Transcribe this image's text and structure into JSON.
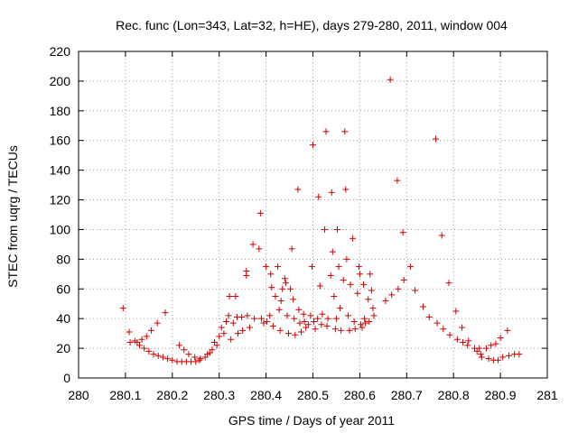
{
  "chart_data": {
    "type": "scatter",
    "title": "Rec. func (Lon=343, Lat=32, h=HE), days 279-280, 2011, window 004",
    "xlabel": "GPS time / Days of year 2011",
    "ylabel": "STEC from uqrg / TECUs",
    "xlim": [
      280,
      281
    ],
    "ylim": [
      0,
      220
    ],
    "xticks": [
      "280",
      "280.1",
      "280.2",
      "280.3",
      "280.4",
      "280.5",
      "280.6",
      "280.7",
      "280.8",
      "280.9",
      "281"
    ],
    "yticks": [
      "0",
      "20",
      "40",
      "60",
      "80",
      "100",
      "120",
      "140",
      "160",
      "180",
      "200",
      "220"
    ],
    "grid": true,
    "marker": "plus",
    "color": "#cc0000",
    "points": [
      [
        280.095,
        47
      ],
      [
        280.108,
        31
      ],
      [
        280.11,
        24
      ],
      [
        280.12,
        25
      ],
      [
        280.125,
        24
      ],
      [
        280.13,
        22
      ],
      [
        280.135,
        26
      ],
      [
        280.14,
        20
      ],
      [
        280.145,
        28
      ],
      [
        280.15,
        18
      ],
      [
        280.155,
        32
      ],
      [
        280.16,
        16
      ],
      [
        280.168,
        37
      ],
      [
        280.17,
        15
      ],
      [
        280.18,
        14
      ],
      [
        280.185,
        44
      ],
      [
        280.19,
        13
      ],
      [
        280.2,
        12
      ],
      [
        280.21,
        11
      ],
      [
        280.215,
        22
      ],
      [
        280.22,
        11
      ],
      [
        280.225,
        19
      ],
      [
        280.23,
        11
      ],
      [
        280.235,
        16
      ],
      [
        280.24,
        11
      ],
      [
        280.248,
        14
      ],
      [
        280.25,
        11
      ],
      [
        280.258,
        12
      ],
      [
        280.26,
        13
      ],
      [
        280.27,
        14
      ],
      [
        280.275,
        16
      ],
      [
        280.28,
        17
      ],
      [
        280.285,
        19
      ],
      [
        280.29,
        24
      ],
      [
        280.295,
        22
      ],
      [
        280.3,
        28
      ],
      [
        280.305,
        34
      ],
      [
        280.31,
        30
      ],
      [
        280.315,
        38
      ],
      [
        280.32,
        42
      ],
      [
        280.322,
        55
      ],
      [
        280.325,
        26
      ],
      [
        280.33,
        37
      ],
      [
        280.335,
        55
      ],
      [
        280.338,
        41
      ],
      [
        280.34,
        30
      ],
      [
        280.348,
        41
      ],
      [
        280.35,
        32
      ],
      [
        280.358,
        72
      ],
      [
        280.358,
        69
      ],
      [
        280.36,
        42
      ],
      [
        280.365,
        34
      ],
      [
        280.372,
        90
      ],
      [
        280.375,
        40
      ],
      [
        280.385,
        87
      ],
      [
        280.388,
        111
      ],
      [
        280.39,
        40
      ],
      [
        280.395,
        37
      ],
      [
        280.4,
        75
      ],
      [
        280.402,
        38
      ],
      [
        280.408,
        42
      ],
      [
        280.41,
        70
      ],
      [
        280.412,
        61
      ],
      [
        280.415,
        35
      ],
      [
        280.42,
        55
      ],
      [
        280.425,
        75
      ],
      [
        280.428,
        46
      ],
      [
        280.43,
        32
      ],
      [
        280.432,
        52
      ],
      [
        280.435,
        60
      ],
      [
        280.44,
        67
      ],
      [
        280.442,
        64
      ],
      [
        280.445,
        42
      ],
      [
        280.448,
        30
      ],
      [
        280.452,
        60
      ],
      [
        280.455,
        87
      ],
      [
        280.458,
        53
      ],
      [
        280.46,
        40
      ],
      [
        280.462,
        29
      ],
      [
        280.468,
        127
      ],
      [
        280.47,
        46
      ],
      [
        280.472,
        37
      ],
      [
        280.475,
        31
      ],
      [
        280.48,
        43
      ],
      [
        280.482,
        38
      ],
      [
        280.485,
        34
      ],
      [
        280.49,
        36
      ],
      [
        280.495,
        42
      ],
      [
        280.498,
        75
      ],
      [
        280.5,
        157
      ],
      [
        280.502,
        38
      ],
      [
        280.505,
        33
      ],
      [
        280.51,
        40
      ],
      [
        280.512,
        122
      ],
      [
        280.515,
        62
      ],
      [
        280.518,
        36
      ],
      [
        280.52,
        43
      ],
      [
        280.525,
        100
      ],
      [
        280.528,
        166
      ],
      [
        280.53,
        35
      ],
      [
        280.532,
        40
      ],
      [
        280.538,
        69
      ],
      [
        280.54,
        125
      ],
      [
        280.542,
        85
      ],
      [
        280.545,
        55
      ],
      [
        280.548,
        33
      ],
      [
        280.55,
        40
      ],
      [
        280.552,
        100
      ],
      [
        280.555,
        75
      ],
      [
        280.558,
        47
      ],
      [
        280.56,
        32
      ],
      [
        280.565,
        66
      ],
      [
        280.568,
        166
      ],
      [
        280.57,
        127
      ],
      [
        280.572,
        80
      ],
      [
        280.575,
        42
      ],
      [
        280.578,
        32
      ],
      [
        280.58,
        63
      ],
      [
        280.585,
        94
      ],
      [
        280.588,
        38
      ],
      [
        280.59,
        33
      ],
      [
        280.595,
        57
      ],
      [
        280.598,
        75
      ],
      [
        280.6,
        70
      ],
      [
        280.602,
        36
      ],
      [
        280.605,
        34
      ],
      [
        280.608,
        63
      ],
      [
        280.61,
        40
      ],
      [
        280.612,
        37
      ],
      [
        280.618,
        53
      ],
      [
        280.62,
        38
      ],
      [
        280.622,
        70
      ],
      [
        280.625,
        59
      ],
      [
        280.628,
        47
      ],
      [
        280.63,
        42
      ],
      [
        280.655,
        52
      ],
      [
        280.665,
        201
      ],
      [
        280.668,
        56
      ],
      [
        280.68,
        133
      ],
      [
        280.682,
        60
      ],
      [
        280.692,
        98
      ],
      [
        280.694,
        66
      ],
      [
        280.708,
        75
      ],
      [
        280.718,
        59
      ],
      [
        280.735,
        48
      ],
      [
        280.748,
        41
      ],
      [
        280.762,
        161
      ],
      [
        280.765,
        37
      ],
      [
        280.775,
        96
      ],
      [
        280.778,
        33
      ],
      [
        280.79,
        64
      ],
      [
        280.792,
        29
      ],
      [
        280.805,
        45
      ],
      [
        280.808,
        26
      ],
      [
        280.818,
        34
      ],
      [
        280.82,
        24
      ],
      [
        280.83,
        22
      ],
      [
        280.832,
        25
      ],
      [
        280.845,
        20
      ],
      [
        280.85,
        18
      ],
      [
        280.855,
        20
      ],
      [
        280.858,
        16
      ],
      [
        280.86,
        14
      ],
      [
        280.87,
        20
      ],
      [
        280.875,
        13
      ],
      [
        280.88,
        22
      ],
      [
        280.885,
        12
      ],
      [
        280.89,
        23
      ],
      [
        280.895,
        12
      ],
      [
        280.9,
        27
      ],
      [
        280.905,
        14
      ],
      [
        280.915,
        32
      ],
      [
        280.918,
        15
      ],
      [
        280.93,
        16
      ],
      [
        280.94,
        16
      ]
    ]
  }
}
